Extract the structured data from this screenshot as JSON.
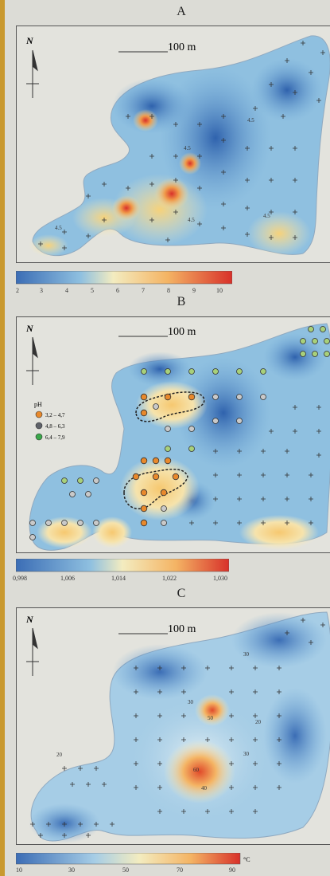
{
  "panels": [
    {
      "id": "A",
      "letter": "A",
      "scale_label": "100 m",
      "north_label": "N",
      "contour_labels": [
        "4.5",
        "4.5",
        "4.5",
        "4.5",
        "4.5"
      ],
      "colorbar_ticks": [
        "2",
        "3",
        "4",
        "5",
        "6",
        "7",
        "8",
        "9",
        "10"
      ]
    },
    {
      "id": "B",
      "letter": "B",
      "scale_label": "100 m",
      "north_label": "N",
      "legend": {
        "title": "pH",
        "items": [
          {
            "label": "3,2 – 4,7",
            "color": "#e8892c"
          },
          {
            "label": "4,8 – 6,3",
            "color": "#5f6269"
          },
          {
            "label": "6,4 – 7,9",
            "color": "#3aa84a"
          }
        ]
      },
      "colorbar_ticks": [
        "0,998",
        "1,006",
        "1,014",
        "1,022",
        "1,030"
      ]
    },
    {
      "id": "C",
      "letter": "C",
      "scale_label": "100 m",
      "north_label": "N",
      "contour_labels": [
        "20",
        "30",
        "30",
        "20",
        "30",
        "40",
        "50",
        "60"
      ],
      "colorbar_ticks": [
        "10",
        "30",
        "50",
        "70",
        "90"
      ],
      "colorbar_unit": "°C"
    }
  ],
  "colors": {
    "cold": "#3b6db5",
    "mid": "#f3ecc0",
    "hot": "#d8312a",
    "background": "#dcdcd6",
    "border": "#c9992f"
  }
}
